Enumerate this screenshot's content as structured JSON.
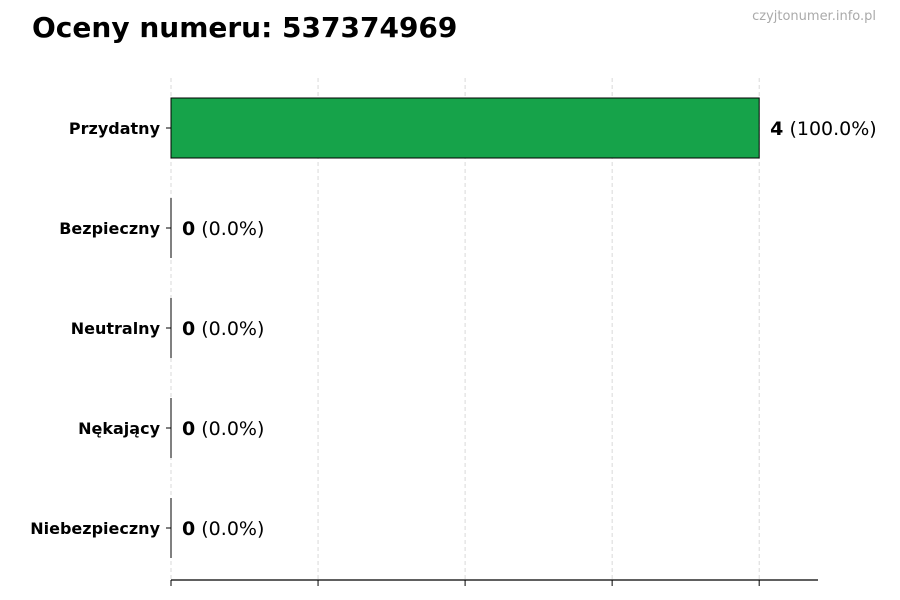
{
  "title": "Oceny numeru: 537374969",
  "watermark": "czyjtonumer.info.pl",
  "chart_data": {
    "type": "bar",
    "orientation": "horizontal",
    "title": "Oceny numeru: 537374969",
    "categories": [
      "Przydatny",
      "Bezpieczny",
      "Neutralny",
      "Nękający",
      "Niebezpieczny"
    ],
    "values": [
      4,
      0,
      0,
      0,
      0
    ],
    "percent_labels": [
      "(100.0%)",
      "(0.0%)",
      "(0.0%)",
      "(0.0%)",
      "(0.0%)"
    ],
    "xlim": [
      0,
      4.4
    ],
    "xticks": [
      0,
      1,
      2,
      3,
      4
    ],
    "xtick_labels_shown": false,
    "grid": "vertical dashed",
    "bar_color": "#16a34a",
    "edge_color": "#000000"
  }
}
